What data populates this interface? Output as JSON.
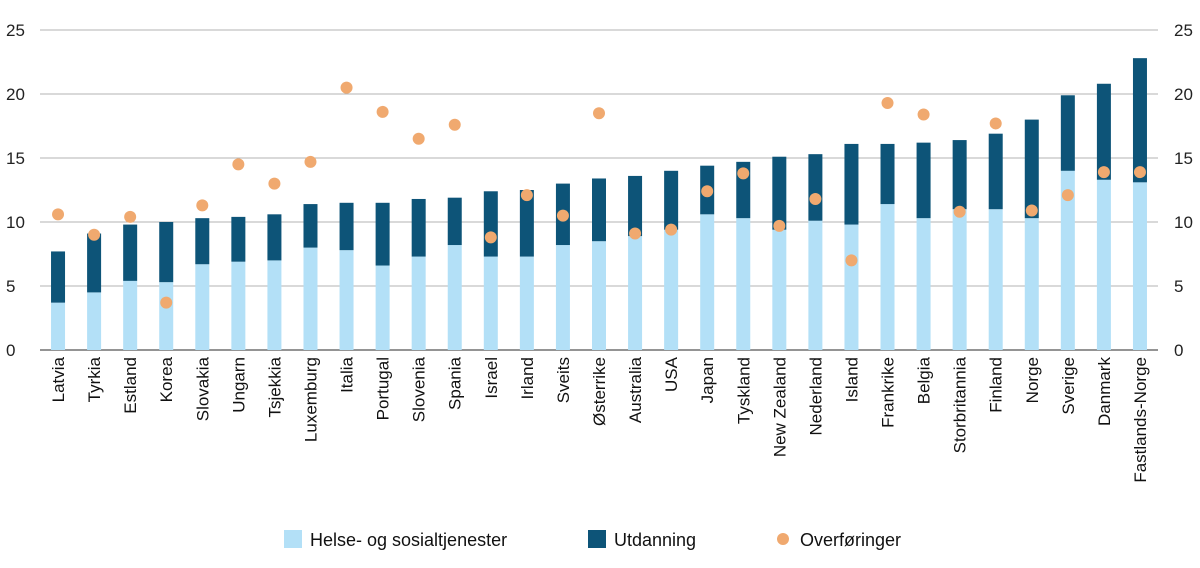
{
  "chart_data": {
    "type": "bar",
    "stacked": true,
    "title": "",
    "xlabel": "",
    "ylabel": "",
    "ylim": [
      0,
      25
    ],
    "yticks": [
      0,
      5,
      10,
      15,
      20,
      25
    ],
    "grid": true,
    "legend_position": "bottom",
    "categories": [
      "Latvia",
      "Tyrkia",
      "Estland",
      "Korea",
      "Slovakia",
      "Ungarn",
      "Tsjekkia",
      "Luxemburg",
      "Italia",
      "Portugal",
      "Slovenia",
      "Spania",
      "Israel",
      "Irland",
      "Sveits",
      "Østerrike",
      "Australia",
      "USA",
      "Japan",
      "Tyskland",
      "New Zealand",
      "Nederland",
      "Island",
      "Frankrike",
      "Belgia",
      "Storbritannia",
      "Finland",
      "Norge",
      "Sverige",
      "Danmark",
      "Fastlands-Norge"
    ],
    "series": [
      {
        "name": "Helse- og sosialtjenester",
        "kind": "bar",
        "color": "#b3e0f7",
        "values": [
          3.7,
          4.5,
          5.4,
          5.3,
          6.7,
          6.9,
          7.0,
          8.0,
          7.8,
          6.6,
          7.3,
          8.2,
          7.3,
          7.3,
          8.2,
          8.5,
          8.9,
          9.4,
          10.6,
          10.3,
          9.4,
          10.1,
          9.8,
          11.4,
          10.3,
          11.0,
          11.0,
          10.3,
          14.0,
          13.3,
          13.1
        ]
      },
      {
        "name": "Utdanning",
        "kind": "bar",
        "color": "#0d5478",
        "values": [
          4.0,
          4.6,
          4.4,
          4.7,
          3.6,
          3.5,
          3.6,
          3.4,
          3.7,
          4.9,
          4.5,
          3.7,
          5.1,
          5.2,
          4.8,
          4.9,
          4.7,
          4.6,
          3.8,
          4.4,
          5.7,
          5.2,
          6.3,
          4.7,
          5.9,
          5.4,
          5.9,
          7.7,
          5.9,
          7.5,
          9.7
        ]
      },
      {
        "name": "Overføringer",
        "kind": "scatter",
        "color": "#f0a96f",
        "values": [
          10.6,
          9.0,
          10.4,
          3.7,
          11.3,
          14.5,
          13.0,
          14.7,
          20.5,
          18.6,
          16.5,
          17.6,
          8.8,
          12.1,
          10.5,
          18.5,
          9.1,
          9.4,
          12.4,
          13.8,
          9.7,
          11.8,
          7.0,
          19.3,
          18.4,
          10.8,
          17.7,
          10.9,
          12.1,
          13.9,
          13.9
        ]
      }
    ]
  }
}
